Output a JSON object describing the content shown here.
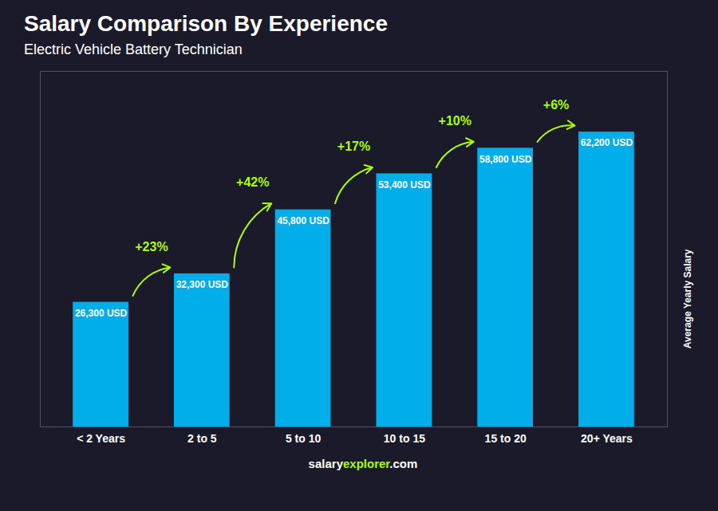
{
  "chart_data": {
    "type": "bar",
    "title": "Salary Comparison By Experience",
    "subtitle": "Electric Vehicle Battery Technician",
    "ylabel": "Average Yearly Salary",
    "categories": [
      "< 2 Years",
      "2 to 5",
      "5 to 10",
      "10 to 15",
      "15 to 20",
      "20+ Years"
    ],
    "values": [
      26300,
      32300,
      45800,
      53400,
      58800,
      62200
    ],
    "value_labels": [
      "26,300 USD",
      "32,300 USD",
      "45,800 USD",
      "53,400 USD",
      "58,800 USD",
      "62,200 USD"
    ],
    "data_labels": true,
    "color": "#00BFFF",
    "ylim": [
      0,
      75000
    ],
    "tick_labels": "x",
    "grid": false,
    "annotations": [
      {
        "text": "+23%",
        "color": "#AAFF00"
      },
      {
        "text": "+42%",
        "color": "#AAFF00"
      },
      {
        "text": "+17%",
        "color": "#AAFF00"
      },
      {
        "text": "+10%",
        "color": "#AAFF00"
      },
      {
        "text": "+6%",
        "color": "#AAFF00"
      }
    ],
    "footer": [
      {
        "text": "salary",
        "color": "#FFFFFF"
      },
      {
        "text": "explorer",
        "color": "#AAFF00"
      },
      {
        "text": ".com",
        "color": "#FFFFFF"
      }
    ]
  }
}
